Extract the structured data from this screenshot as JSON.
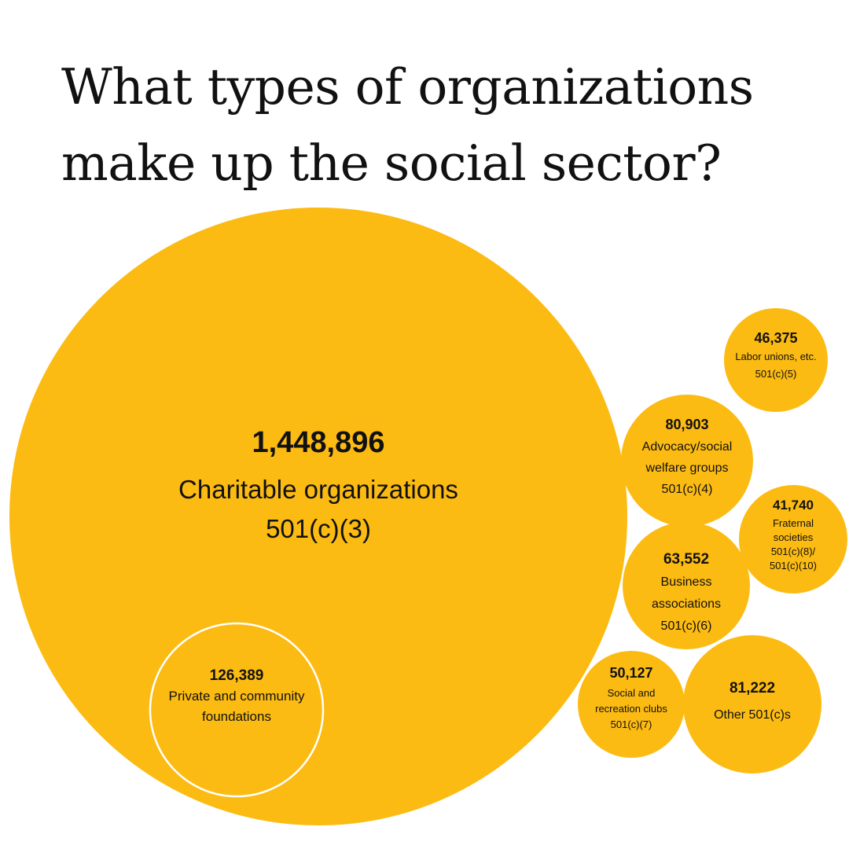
{
  "title": {
    "line1": "What types of organizations",
    "line2": "make up the social sector?"
  },
  "colors": {
    "bubble": "#FCBB12",
    "outline": "#FFFFFF",
    "text": "#111111",
    "background": "#FFFFFF"
  },
  "chart_data": {
    "type": "bubble",
    "title": "What types of organizations make up the social sector?",
    "series": [
      {
        "id": "c3",
        "value": 1448896,
        "value_label": "1,448,896",
        "lines": [
          "Charitable organizations",
          "501(c)(3)"
        ]
      },
      {
        "id": "foundations",
        "parent": "c3",
        "value": 126389,
        "value_label": "126,389",
        "lines": [
          "Private and community",
          "foundations"
        ]
      },
      {
        "id": "c5",
        "value": 46375,
        "value_label": "46,375",
        "lines": [
          "Labor unions, etc.",
          "501(c)(5)"
        ]
      },
      {
        "id": "c4",
        "value": 80903,
        "value_label": "80,903",
        "lines": [
          "Advocacy/social",
          "welfare groups",
          "501(c)(4)"
        ]
      },
      {
        "id": "c8",
        "value": 41740,
        "value_label": "41,740",
        "lines": [
          "Fraternal",
          "societies",
          "501(c)(8)/",
          "501(c)(10)"
        ]
      },
      {
        "id": "c6",
        "value": 63552,
        "value_label": "63,552",
        "lines": [
          "Business",
          "associations",
          "501(c)(6)"
        ]
      },
      {
        "id": "c7",
        "value": 50127,
        "value_label": "50,127",
        "lines": [
          "Social and",
          "recreation clubs",
          "501(c)(7)"
        ]
      },
      {
        "id": "other",
        "value": 81222,
        "value_label": "81,222",
        "lines": [
          "Other 501(c)s"
        ]
      }
    ]
  }
}
